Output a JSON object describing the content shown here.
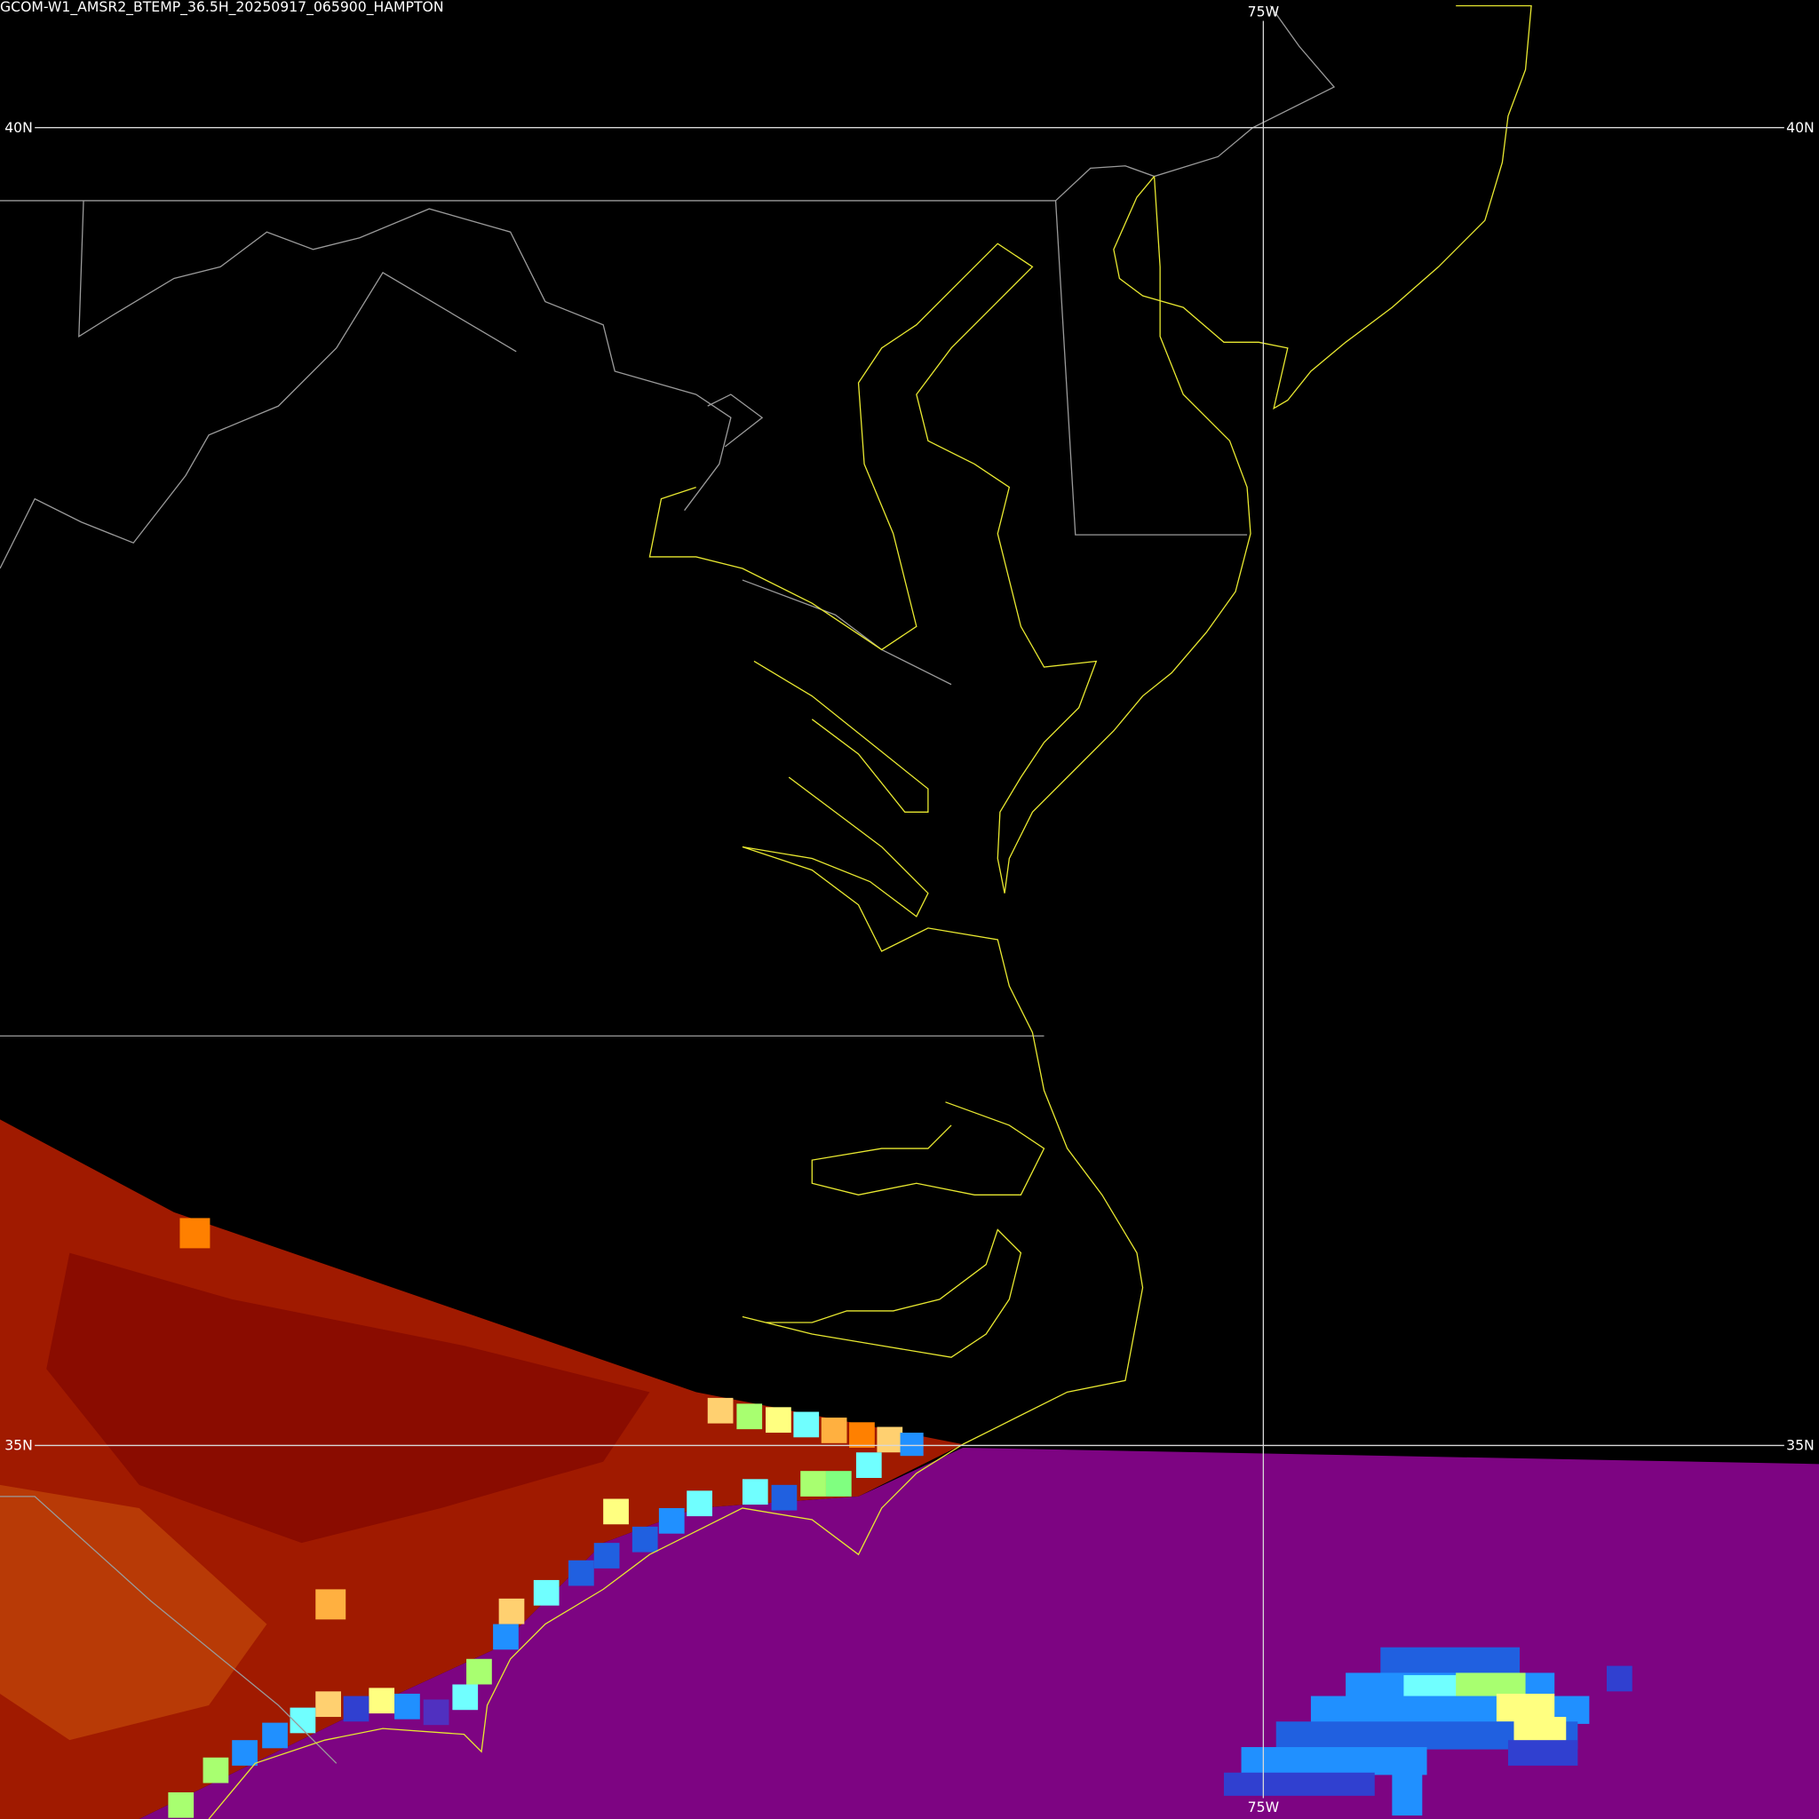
{
  "map": {
    "title": "GCOM-W1_AMSR2_BTEMP_36.5H_20250917_065900_HAMPTON",
    "graticule": {
      "lat": [
        "40N",
        "35N"
      ],
      "lon": [
        "75W"
      ]
    }
  }
}
